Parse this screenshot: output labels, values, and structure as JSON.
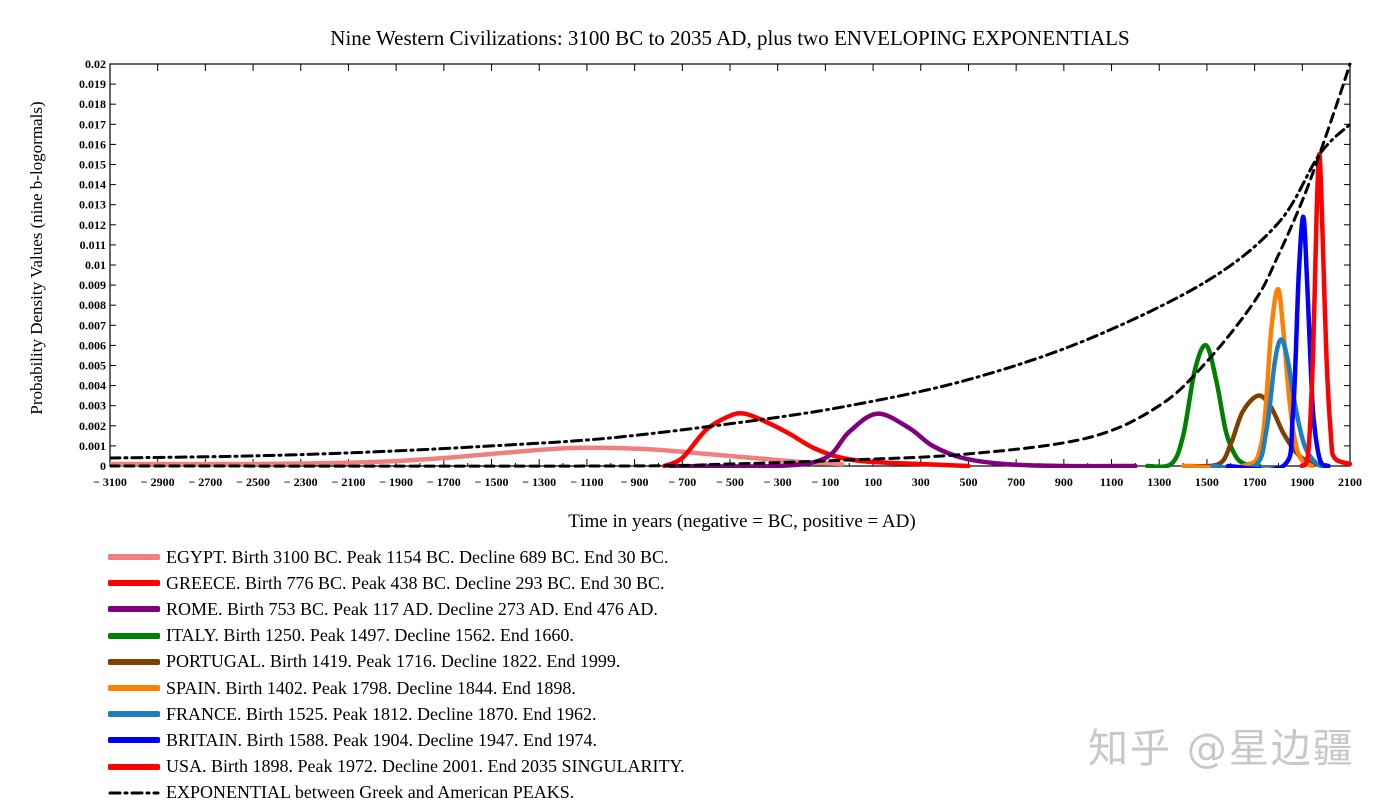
{
  "chart_data": {
    "type": "line",
    "title": "Nine Western Civilizations: 3100 BC to 2035 AD, plus two ENVELOPING EXPONENTIALS",
    "xlabel": "Time in years (negative = BC, positive = AD)",
    "ylabel": "Probability Density Values (nine b-logormals)",
    "xlim": [
      -3100,
      2100
    ],
    "ylim": [
      0,
      0.02
    ],
    "x_ticks": [
      -3100,
      -2900,
      -2700,
      -2500,
      -2300,
      -2100,
      -1900,
      -1700,
      -1500,
      -1300,
      -1100,
      -900,
      -700,
      -500,
      -300,
      -100,
      100,
      300,
      500,
      700,
      900,
      1100,
      1300,
      1500,
      1700,
      1900,
      2100
    ],
    "x_tick_labels": [
      "− 3100",
      "− 2900",
      "− 2700",
      "− 2500",
      "− 2300",
      "− 2100",
      "− 1900",
      "− 1700",
      "− 1500",
      "− 1300",
      "− 1100",
      "− 900",
      "− 700",
      "− 500",
      "− 300",
      "− 100",
      "100",
      "300",
      "500",
      "700",
      "900",
      "1100",
      "1300",
      "1500",
      "1700",
      "1900",
      "2100"
    ],
    "y_ticks": [
      0,
      0.001,
      0.002,
      0.003,
      0.004,
      0.005,
      0.006,
      0.007,
      0.008,
      0.009,
      0.01,
      0.011,
      0.012,
      0.013,
      0.014,
      0.015,
      0.016,
      0.017,
      0.018,
      0.019,
      0.02
    ],
    "y_tick_labels": [
      "0",
      "0.001",
      "0.002",
      "0.003",
      "0.004",
      "0.005",
      "0.006",
      "0.007",
      "0.008",
      "0.009",
      "0.01",
      "0.011",
      "0.012",
      "0.013",
      "0.014",
      "0.015",
      "0.016",
      "0.017",
      "0.018",
      "0.019",
      "0.02"
    ],
    "legend_position": "below",
    "series": [
      {
        "label": "EGYPT. Birth 3100 BC. Peak 1154 BC. Decline 689 BC. End 30 BC.",
        "color": "#f08080",
        "style": "solid",
        "x": [
          -3100,
          -2500,
          -2000,
          -1700,
          -1500,
          -1300,
          -1154,
          -1000,
          -800,
          -600,
          -400,
          -200,
          -30
        ],
        "y": [
          0.0001,
          0.0001,
          0.0002,
          0.0004,
          0.0006,
          0.0008,
          0.0009,
          0.0009,
          0.0008,
          0.0006,
          0.0004,
          0.0002,
          0.0001
        ]
      },
      {
        "label": "GREECE. Birth 776 BC. Peak 438 BC. Decline 293 BC. End 30 BC.",
        "color": "#ff0000",
        "style": "solid",
        "x": [
          -776,
          -700,
          -600,
          -500,
          -438,
          -350,
          -250,
          -150,
          -30,
          100,
          300,
          500
        ],
        "y": [
          0.0,
          0.0004,
          0.0018,
          0.0025,
          0.0026,
          0.0022,
          0.0016,
          0.0009,
          0.0004,
          0.0002,
          0.0001,
          0.0
        ]
      },
      {
        "label": "ROME. Birth 753 BC. Peak 117 AD. Decline 273 AD. End 476 AD.",
        "color": "#800080",
        "style": "solid",
        "x": [
          -753,
          -300,
          -100,
          0,
          117,
          250,
          350,
          476,
          650,
          900,
          1200
        ],
        "y": [
          0.0,
          0.0,
          0.0004,
          0.0017,
          0.0026,
          0.0019,
          0.001,
          0.0004,
          0.0001,
          0.0,
          0.0
        ]
      },
      {
        "label": "ITALY. Birth 1250. Peak 1497. Decline 1562. End 1660.",
        "color": "#008000",
        "style": "solid",
        "x": [
          1250,
          1350,
          1400,
          1450,
          1497,
          1540,
          1580,
          1620,
          1660,
          1720
        ],
        "y": [
          0.0,
          0.0001,
          0.0015,
          0.0048,
          0.006,
          0.0042,
          0.0017,
          0.0005,
          0.0001,
          0.0
        ]
      },
      {
        "label": "PORTUGAL. Birth 1419. Peak 1716. Decline 1822. End 1999.",
        "color": "#804000",
        "style": "solid",
        "x": [
          1419,
          1550,
          1600,
          1650,
          1716,
          1770,
          1822,
          1880,
          1930,
          1999
        ],
        "y": [
          0.0,
          0.0001,
          0.0011,
          0.0027,
          0.0035,
          0.0029,
          0.0016,
          0.0006,
          0.0002,
          0.0
        ]
      },
      {
        "label": "SPAIN. Birth 1402. Peak 1798. Decline 1844. End 1898.",
        "color": "#ff8000",
        "style": "solid",
        "x": [
          1402,
          1650,
          1730,
          1770,
          1798,
          1820,
          1844,
          1870,
          1898,
          1940
        ],
        "y": [
          0.0,
          0.0,
          0.0012,
          0.0068,
          0.0088,
          0.0068,
          0.0035,
          0.0012,
          0.0003,
          0.0
        ]
      },
      {
        "label": "FRANCE. Birth 1525. Peak 1812. Decline 1870. End 1962.",
        "color": "#1e7fc0",
        "style": "solid",
        "x": [
          1525,
          1700,
          1750,
          1785,
          1812,
          1840,
          1870,
          1910,
          1962,
          2000
        ],
        "y": [
          0.0,
          0.0,
          0.0018,
          0.0052,
          0.0063,
          0.0052,
          0.003,
          0.001,
          0.0001,
          0.0
        ]
      },
      {
        "label": "BRITAIN. Birth 1588. Peak 1904. Decline 1947. End 1974.",
        "color": "#0000ff",
        "style": "solid",
        "x": [
          1588,
          1820,
          1860,
          1885,
          1904,
          1920,
          1935,
          1947,
          1974,
          2010
        ],
        "y": [
          0.0,
          0.0,
          0.0025,
          0.0095,
          0.0124,
          0.0092,
          0.005,
          0.0024,
          0.0003,
          0.0
        ]
      },
      {
        "label": "USA. Birth 1898. Peak 1972. Decline 2001. End 2035 SINGULARITY.",
        "color": "#ff0000",
        "style": "solid",
        "x": [
          1898,
          1925,
          1945,
          1960,
          1972,
          1985,
          2001,
          2020,
          2035,
          2100
        ],
        "y": [
          0.0,
          0.0007,
          0.0055,
          0.0125,
          0.0155,
          0.0115,
          0.0055,
          0.0015,
          0.0004,
          0.0001
        ]
      },
      {
        "label": "EXPONENTIAL between Greek and American PEAKS.",
        "color": "#000000",
        "style": "dashdot",
        "x": [
          -3100,
          -2500,
          -2000,
          -1500,
          -1000,
          -438,
          0,
          500,
          1000,
          1500,
          1800,
          1972,
          2100
        ],
        "y": [
          0.0004,
          0.0005,
          0.0007,
          0.001,
          0.0014,
          0.0022,
          0.003,
          0.0043,
          0.0063,
          0.0092,
          0.0121,
          0.0155,
          0.017
        ]
      },
      {
        "label": "",
        "color": "#000000",
        "style": "dashed",
        "x": [
          -3100,
          -1000,
          -500,
          0,
          500,
          1000,
          1300,
          1500,
          1700,
          1800,
          1900,
          1972,
          2050,
          2100
        ],
        "y": [
          0.0,
          0.0,
          0.0001,
          0.0003,
          0.0006,
          0.0014,
          0.003,
          0.0052,
          0.0082,
          0.0105,
          0.0132,
          0.0155,
          0.0182,
          0.02
        ]
      }
    ]
  },
  "watermark": "知乎 @星边疆"
}
